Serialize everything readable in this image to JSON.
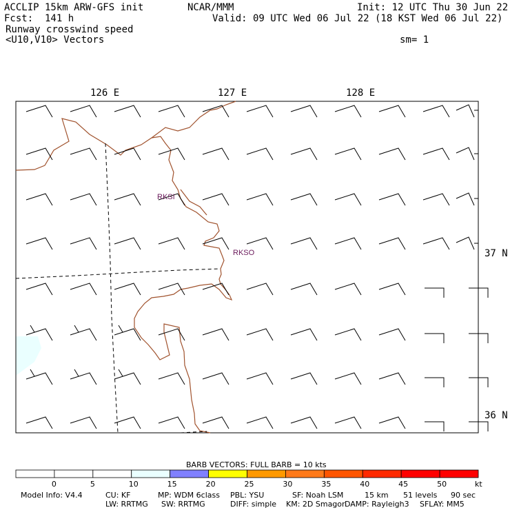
{
  "header": {
    "model": "ACCLIP 15km ARW-GFS init",
    "center": "NCAR/MMM",
    "init": "Init: 12 UTC Thu 30 Jun 22",
    "fcst": "Fcst:  141 h",
    "valid": "Valid: 09 UTC Wed 06 Jul 22 (18 KST Wed 06 Jul 22)",
    "field1": "Runway crosswind speed",
    "field2": "<U10,V10> Vectors",
    "sm": "sm= 1"
  },
  "axes": {
    "lon_labels": [
      "126 E",
      "127 E",
      "128 E"
    ],
    "lat_labels": [
      "37 N",
      "36 N"
    ]
  },
  "stations": [
    {
      "id": "RKSI"
    },
    {
      "id": "RKSO"
    }
  ],
  "colorbar": {
    "title": "BARB VECTORS:  FULL BARB = 10 kts",
    "ticks": [
      "0",
      "5",
      "10",
      "15",
      "20",
      "25",
      "30",
      "35",
      "40",
      "45",
      "50"
    ],
    "unit": "kt",
    "colors": [
      "#ffffff",
      "#ffffff",
      "#ffffff",
      "#eaffff",
      "#8080ff",
      "#ffff00",
      "#ff9900",
      "#ff7a1a",
      "#ff5500",
      "#ff2a00",
      "#ff0000",
      "#ff0000"
    ]
  },
  "footer": {
    "line1": [
      {
        "key": "m",
        "text": "Model Info: V4.4"
      },
      {
        "key": "cu",
        "text": "CU: KF"
      },
      {
        "key": "mp",
        "text": "MP: WDM 6class"
      },
      {
        "key": "pbl",
        "text": "PBL: YSU"
      },
      {
        "key": "sf",
        "text": "SF: Noah LSM"
      },
      {
        "key": "km",
        "text": "15 km"
      },
      {
        "key": "lev",
        "text": "51 levels"
      },
      {
        "key": "sec",
        "text": "90 sec"
      }
    ],
    "line2": [
      {
        "key": "lw",
        "text": "LW: RRTMG"
      },
      {
        "key": "sw",
        "text": "SW: RRTMG"
      },
      {
        "key": "diff",
        "text": "DIFF: simple"
      },
      {
        "key": "kmopt",
        "text": "KM: 2D Smagor"
      },
      {
        "key": "damp",
        "text": "DAMP: Rayleigh3"
      },
      {
        "key": "sflay",
        "text": "SFLAY: MM5"
      }
    ]
  }
}
